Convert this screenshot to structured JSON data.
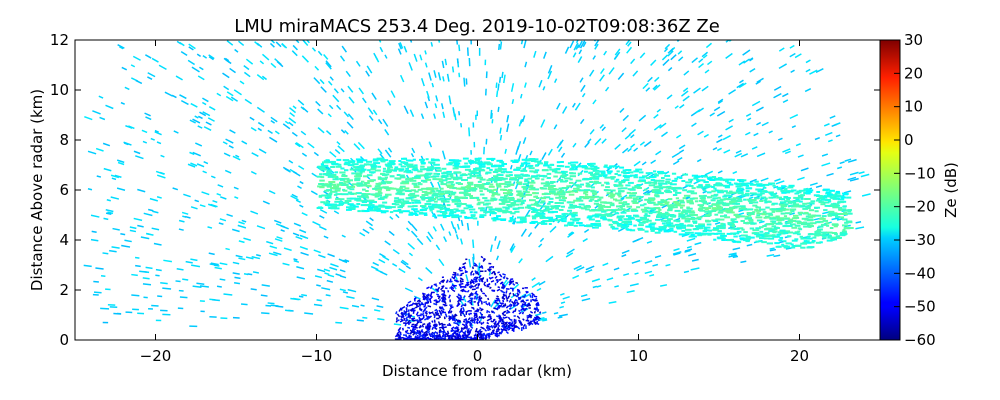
{
  "chart_data": {
    "type": "heatmap",
    "title": "LMU miraMACS 253.4 Deg. 2019-10-02T09:08:36Z  Ze",
    "xlabel": "Distance from radar (km)",
    "ylabel": "Distance Above radar  (km)",
    "xlim": [
      -25,
      25
    ],
    "ylim": [
      0,
      12
    ],
    "xticks": [
      -20,
      -10,
      0,
      10,
      20
    ],
    "xtick_labels": [
      "−20",
      "−10",
      "0",
      "10",
      "20"
    ],
    "yticks": [
      0,
      2,
      4,
      6,
      8,
      10,
      12
    ],
    "ytick_labels": [
      "0",
      "2",
      "4",
      "6",
      "8",
      "10",
      "12"
    ],
    "grid": false,
    "colorbar": {
      "label": "Ze (dB)",
      "colormap": "jet",
      "range": [
        -60,
        30
      ],
      "ticks": [
        30,
        20,
        10,
        0,
        -10,
        -20,
        -30,
        -40,
        -50,
        -60
      ],
      "tick_labels": [
        "30",
        "20",
        "10",
        "0",
        "−10",
        "−20",
        "−30",
        "−40",
        "−50",
        "−60"
      ]
    },
    "features": [
      {
        "name": "noise-background",
        "ze_db": -30,
        "x_range_km": [
          -24,
          24
        ],
        "y_range_km": [
          0.5,
          12
        ],
        "note": "sparse dashes across the radar sector"
      },
      {
        "name": "cloud-layer",
        "ze_db": -25,
        "x_range_km": [
          -10,
          23
        ],
        "y_range_km": [
          4.0,
          7.4
        ],
        "core_ze_db": -21,
        "note": "tilted stratiform layer, thicker near radar"
      },
      {
        "name": "near-radar-low-reflectivity",
        "ze_db": -50,
        "x_range_km": [
          -5,
          4
        ],
        "y_range_km": [
          0,
          3.5
        ],
        "note": "dense blue returns close to the radar"
      }
    ],
    "sector_lower_edge": {
      "from_km": [
        0,
        0
      ],
      "to_km": [
        23.5,
        4.3
      ]
    }
  }
}
